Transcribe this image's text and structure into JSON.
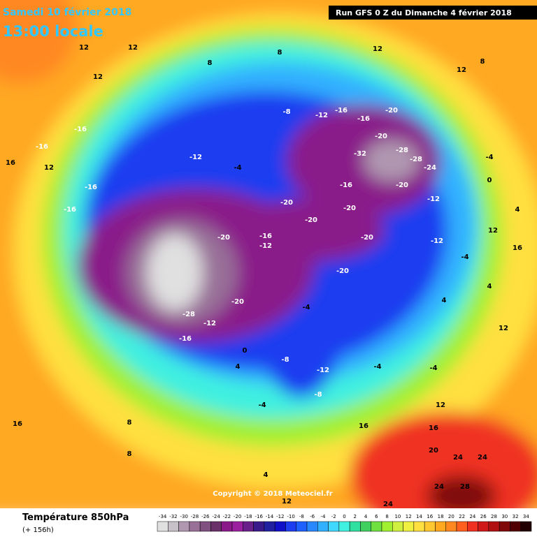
{
  "header": {
    "date": "Samedi 10 février 2018",
    "time": "13:00 locale",
    "run": "Run GFS 0 Z du Dimanche 4 février 2018"
  },
  "copyright": "Copyright © 2018 Meteociel.fr",
  "footer": {
    "title": "Température 850hPa",
    "lead": "(+ 156h)"
  },
  "legend": {
    "ticks": [
      -34,
      -32,
      -30,
      -28,
      -26,
      -24,
      -22,
      -20,
      -18,
      -16,
      -14,
      -12,
      -10,
      -8,
      -6,
      -4,
      -2,
      0,
      2,
      4,
      6,
      8,
      10,
      12,
      14,
      16,
      18,
      20,
      22,
      24,
      26,
      28,
      30,
      32,
      34
    ],
    "colors": [
      "#e0e0e0",
      "#c8c0c8",
      "#b098b0",
      "#987098",
      "#805080",
      "#6a306a",
      "#8a1a8a",
      "#9a20a0",
      "#6a208a",
      "#3a1a8a",
      "#2020a0",
      "#1010c8",
      "#1e3cf0",
      "#2060ff",
      "#2a88ff",
      "#30b0ff",
      "#40d8ff",
      "#40f0e0",
      "#30e0a0",
      "#40d060",
      "#70e040",
      "#a0f030",
      "#d0f040",
      "#f0f040",
      "#ffe040",
      "#ffc830",
      "#ffa820",
      "#ff8820",
      "#ff6020",
      "#f03020",
      "#d01818",
      "#b01010",
      "#800808",
      "#500000",
      "#200000"
    ]
  },
  "contour_labels": [
    12,
    12,
    8,
    12,
    8,
    12,
    8,
    12,
    -16,
    -16,
    16,
    12,
    -16,
    -16,
    -12,
    -4,
    -8,
    -12,
    -16,
    -16,
    -20,
    -20,
    -32,
    -28,
    -28,
    -24,
    -20,
    -16,
    -20,
    -20,
    -20,
    -20,
    -20,
    -20,
    -16,
    -12,
    -28,
    -12,
    -16,
    -20,
    -4,
    -8,
    -12,
    0,
    4,
    -4,
    -8,
    -4,
    -4,
    12,
    16,
    16,
    20,
    24,
    24,
    28,
    24,
    24,
    16,
    8,
    8,
    12,
    4,
    4,
    16,
    12,
    4,
    4,
    12,
    0,
    -4,
    -12,
    -12,
    -4
  ]
}
